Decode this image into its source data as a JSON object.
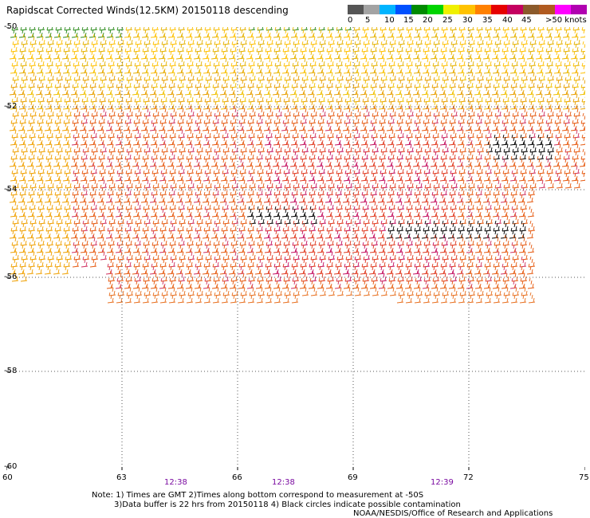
{
  "title": "Rapidscat Corrected Winds(12.5KM) 20150118 descending",
  "legend": {
    "colors": [
      "#555555",
      "#a3a3a3",
      "#00b4ff",
      "#0050ff",
      "#008a00",
      "#00d400",
      "#f0f000",
      "#ffc200",
      "#ff8000",
      "#e60000",
      "#c40060",
      "#8b5a2b",
      "#b05a20",
      "#ff00ff",
      "#b000b0"
    ],
    "labels": [
      "0",
      "5",
      "10",
      "15",
      "20",
      "25",
      "30",
      "35",
      "40",
      "45",
      ">50 knots"
    ]
  },
  "map": {
    "lon_ticks": [
      "60",
      "63",
      "66",
      "69",
      "72",
      "75"
    ],
    "lat_ticks": [
      "-50",
      "-52",
      "-54",
      "-56",
      "-58",
      "-60"
    ],
    "lon_range": [
      60,
      75
    ],
    "lat_range": [
      -60,
      -50
    ]
  },
  "times": [
    "12:38",
    "12:38",
    "12:39"
  ],
  "notes": {
    "line1": "Note: 1) Times are GMT 2)Times along bottom correspond to measurement at -50S",
    "line2": "3)Data buffer is 22 hrs from 20150118 4) Black circles indicate possible contamination",
    "credit": "NOAA/NESDIS/Office of Research and Applications"
  }
}
